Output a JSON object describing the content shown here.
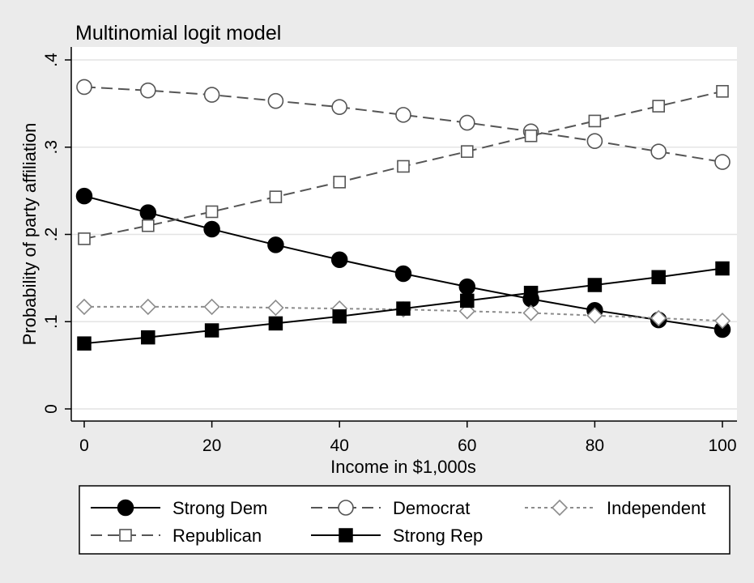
{
  "chart_data": {
    "type": "line",
    "title": "Multinomial logit model",
    "xlabel": "Income in $1,000s",
    "ylabel": "Probability of party affiliation",
    "xlim": [
      0,
      100
    ],
    "ylim": [
      0,
      0.4
    ],
    "x_ticks": [
      0,
      20,
      40,
      60,
      80,
      100
    ],
    "x_tick_labels": [
      "0",
      "20",
      "40",
      "60",
      "80",
      "100"
    ],
    "y_ticks": [
      0,
      0.1,
      0.2,
      0.3,
      0.4
    ],
    "y_tick_labels": [
      "0",
      ".1",
      ".2",
      ".3",
      ".4"
    ],
    "grid": true,
    "legend_position": "bottom",
    "x": [
      0,
      10,
      20,
      30,
      40,
      50,
      60,
      70,
      80,
      90,
      100
    ],
    "series": [
      {
        "name": "Strong Dem",
        "marker": "circle-filled",
        "line": "solid",
        "color": "#000000",
        "values": [
          0.244,
          0.225,
          0.206,
          0.188,
          0.171,
          0.155,
          0.14,
          0.126,
          0.113,
          0.102,
          0.091
        ]
      },
      {
        "name": "Democrat",
        "marker": "circle-open",
        "line": "dashed",
        "color": "#555555",
        "values": [
          0.369,
          0.365,
          0.36,
          0.353,
          0.346,
          0.337,
          0.328,
          0.318,
          0.307,
          0.295,
          0.283
        ]
      },
      {
        "name": "Independent",
        "marker": "diamond-open",
        "line": "dotted",
        "color": "#8c8c8c",
        "values": [
          0.117,
          0.117,
          0.117,
          0.116,
          0.115,
          0.114,
          0.112,
          0.11,
          0.107,
          0.104,
          0.101
        ]
      },
      {
        "name": "Republican",
        "marker": "square-open",
        "line": "dashed",
        "color": "#555555",
        "values": [
          0.195,
          0.21,
          0.226,
          0.243,
          0.26,
          0.278,
          0.295,
          0.313,
          0.33,
          0.347,
          0.364
        ]
      },
      {
        "name": "Strong Rep",
        "marker": "square-filled",
        "line": "solid",
        "color": "#000000",
        "values": [
          0.075,
          0.082,
          0.09,
          0.098,
          0.106,
          0.115,
          0.124,
          0.133,
          0.142,
          0.151,
          0.161
        ]
      }
    ]
  }
}
